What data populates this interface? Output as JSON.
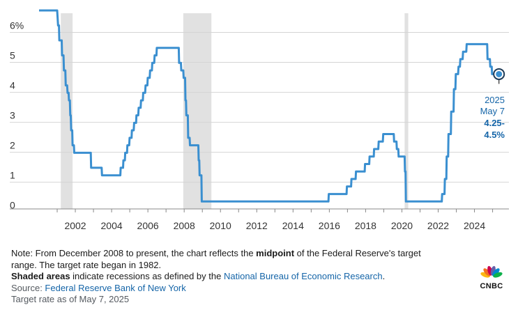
{
  "chart_data": {
    "type": "line",
    "y_tick_labels": [
      "6%",
      "5",
      "4",
      "3",
      "2",
      "1",
      "0"
    ],
    "y_ticks": [
      6,
      5,
      4,
      3,
      2,
      1,
      0
    ],
    "x_tick_labels": [
      "2002",
      "2004",
      "2006",
      "2008",
      "2010",
      "2012",
      "2014",
      "2016",
      "2018",
      "2020",
      "2022",
      "2024"
    ],
    "x_ticks": [
      2002,
      2004,
      2006,
      2008,
      2010,
      2012,
      2014,
      2016,
      2018,
      2020,
      2022,
      2024
    ],
    "xlim": [
      2000.0,
      2025.9
    ],
    "ylim": [
      -0.1,
      6.5
    ],
    "recessions": [
      [
        2001.2,
        2001.85
      ],
      [
        2007.95,
        2009.5
      ],
      [
        2020.15,
        2020.35
      ]
    ],
    "series": [
      {
        "color": "#3a8fd0",
        "points": [
          [
            2000.0,
            6.5
          ],
          [
            2000.6,
            6.5
          ],
          [
            2001.0,
            6.5
          ],
          [
            2001.05,
            6.0
          ],
          [
            2001.1,
            6.0
          ],
          [
            2001.12,
            5.5
          ],
          [
            2001.25,
            5.5
          ],
          [
            2001.27,
            5.0
          ],
          [
            2001.35,
            5.0
          ],
          [
            2001.37,
            4.5
          ],
          [
            2001.45,
            4.5
          ],
          [
            2001.47,
            4.0
          ],
          [
            2001.55,
            4.0
          ],
          [
            2001.57,
            3.75
          ],
          [
            2001.63,
            3.75
          ],
          [
            2001.65,
            3.5
          ],
          [
            2001.7,
            3.5
          ],
          [
            2001.72,
            3.0
          ],
          [
            2001.75,
            3.0
          ],
          [
            2001.77,
            2.5
          ],
          [
            2001.83,
            2.5
          ],
          [
            2001.85,
            2.0
          ],
          [
            2001.92,
            2.0
          ],
          [
            2001.94,
            1.75
          ],
          [
            2002.85,
            1.75
          ],
          [
            2002.87,
            1.25
          ],
          [
            2003.45,
            1.25
          ],
          [
            2003.47,
            1.0
          ],
          [
            2004.48,
            1.0
          ],
          [
            2004.5,
            1.25
          ],
          [
            2004.63,
            1.25
          ],
          [
            2004.65,
            1.5
          ],
          [
            2004.73,
            1.5
          ],
          [
            2004.75,
            1.75
          ],
          [
            2004.85,
            1.75
          ],
          [
            2004.87,
            2.0
          ],
          [
            2004.97,
            2.0
          ],
          [
            2004.99,
            2.25
          ],
          [
            2005.1,
            2.25
          ],
          [
            2005.12,
            2.5
          ],
          [
            2005.22,
            2.5
          ],
          [
            2005.24,
            2.75
          ],
          [
            2005.35,
            2.75
          ],
          [
            2005.37,
            3.0
          ],
          [
            2005.47,
            3.0
          ],
          [
            2005.49,
            3.25
          ],
          [
            2005.6,
            3.25
          ],
          [
            2005.62,
            3.5
          ],
          [
            2005.72,
            3.5
          ],
          [
            2005.74,
            3.75
          ],
          [
            2005.85,
            3.75
          ],
          [
            2005.87,
            4.0
          ],
          [
            2005.97,
            4.0
          ],
          [
            2005.99,
            4.25
          ],
          [
            2006.1,
            4.25
          ],
          [
            2006.12,
            4.5
          ],
          [
            2006.22,
            4.5
          ],
          [
            2006.24,
            4.75
          ],
          [
            2006.35,
            4.75
          ],
          [
            2006.37,
            5.0
          ],
          [
            2006.47,
            5.0
          ],
          [
            2006.49,
            5.25
          ],
          [
            2007.7,
            5.25
          ],
          [
            2007.72,
            4.75
          ],
          [
            2007.82,
            4.75
          ],
          [
            2007.84,
            4.5
          ],
          [
            2007.95,
            4.5
          ],
          [
            2007.97,
            4.25
          ],
          [
            2008.05,
            4.25
          ],
          [
            2008.07,
            3.5
          ],
          [
            2008.1,
            3.5
          ],
          [
            2008.12,
            3.0
          ],
          [
            2008.2,
            3.0
          ],
          [
            2008.22,
            2.25
          ],
          [
            2008.3,
            2.25
          ],
          [
            2008.32,
            2.0
          ],
          [
            2008.78,
            2.0
          ],
          [
            2008.8,
            1.5
          ],
          [
            2008.83,
            1.5
          ],
          [
            2008.85,
            1.0
          ],
          [
            2008.95,
            1.0
          ],
          [
            2008.97,
            0.125
          ],
          [
            2015.95,
            0.125
          ],
          [
            2015.97,
            0.375
          ],
          [
            2016.95,
            0.375
          ],
          [
            2016.97,
            0.625
          ],
          [
            2017.2,
            0.625
          ],
          [
            2017.22,
            0.875
          ],
          [
            2017.45,
            0.875
          ],
          [
            2017.47,
            1.125
          ],
          [
            2017.95,
            1.125
          ],
          [
            2017.97,
            1.375
          ],
          [
            2018.2,
            1.375
          ],
          [
            2018.22,
            1.625
          ],
          [
            2018.45,
            1.625
          ],
          [
            2018.47,
            1.875
          ],
          [
            2018.7,
            1.875
          ],
          [
            2018.72,
            2.125
          ],
          [
            2018.95,
            2.125
          ],
          [
            2018.97,
            2.375
          ],
          [
            2019.55,
            2.375
          ],
          [
            2019.57,
            2.125
          ],
          [
            2019.7,
            2.125
          ],
          [
            2019.72,
            1.875
          ],
          [
            2019.8,
            1.875
          ],
          [
            2019.82,
            1.625
          ],
          [
            2020.15,
            1.625
          ],
          [
            2020.17,
            1.125
          ],
          [
            2020.2,
            1.125
          ],
          [
            2020.22,
            0.125
          ],
          [
            2022.2,
            0.125
          ],
          [
            2022.22,
            0.375
          ],
          [
            2022.35,
            0.375
          ],
          [
            2022.37,
            0.875
          ],
          [
            2022.45,
            0.875
          ],
          [
            2022.47,
            1.625
          ],
          [
            2022.55,
            1.625
          ],
          [
            2022.57,
            2.375
          ],
          [
            2022.7,
            2.375
          ],
          [
            2022.72,
            3.125
          ],
          [
            2022.85,
            3.125
          ],
          [
            2022.87,
            3.875
          ],
          [
            2022.95,
            3.875
          ],
          [
            2022.97,
            4.375
          ],
          [
            2023.1,
            4.375
          ],
          [
            2023.12,
            4.625
          ],
          [
            2023.2,
            4.625
          ],
          [
            2023.22,
            4.875
          ],
          [
            2023.35,
            4.875
          ],
          [
            2023.37,
            5.125
          ],
          [
            2023.55,
            5.125
          ],
          [
            2023.57,
            5.375
          ],
          [
            2024.7,
            5.375
          ],
          [
            2024.72,
            4.875
          ],
          [
            2024.85,
            4.875
          ],
          [
            2024.87,
            4.625
          ],
          [
            2024.95,
            4.625
          ],
          [
            2024.97,
            4.375
          ],
          [
            2025.35,
            4.375
          ]
        ]
      }
    ],
    "annotation": {
      "year": "2025",
      "date": "May 7",
      "rate_line1": "4.25-",
      "rate_line2": "4.5%",
      "x": 2025.35,
      "y": 4.375
    }
  },
  "notes": {
    "line1_pre": "Note: From December 2008 to present, the chart reflects the ",
    "line1_bold": "midpoint",
    "line1_post": " of the Federal Reserve's target",
    "line2": "range. The target rate began in 1982.",
    "line3_bold": "Shaded areas",
    "line3_mid": " indicate recessions as defined by the ",
    "line3_link": "National Bureau of Economic Research",
    "line3_end": ".",
    "source_label": "Source: ",
    "source_link": "Federal Reserve Bank of New York",
    "asof": "Target rate as of May 7, 2025"
  },
  "logo": {
    "word": "CNBC",
    "icon": "peacock-icon",
    "colors": [
      "#fcb711",
      "#f37021",
      "#cc004c",
      "#6460aa",
      "#0089d0",
      "#0db14b"
    ]
  }
}
